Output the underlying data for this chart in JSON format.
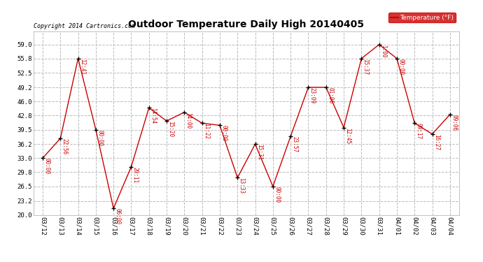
{
  "title": "Outdoor Temperature Daily High 20140405",
  "copyright": "Copyright 2014 Cartronics.com",
  "legend_label": "Temperature (°F)",
  "ylim": [
    20.0,
    62.0
  ],
  "yticks": [
    20.0,
    23.2,
    26.5,
    29.8,
    33.0,
    36.2,
    39.5,
    42.8,
    46.0,
    49.2,
    52.5,
    55.8,
    59.0
  ],
  "background_color": "#ffffff",
  "grid_color": "#bbbbbb",
  "line_color": "#cc0000",
  "marker_color": "#000000",
  "annotation_color": "#cc0000",
  "legend_bg": "#cc0000",
  "legend_fg": "#ffffff",
  "dates": [
    "03/12",
    "03/13",
    "03/14",
    "03/15",
    "03/16",
    "03/17",
    "03/18",
    "03/19",
    "03/20",
    "03/21",
    "03/22",
    "03/23",
    "03/24",
    "03/25",
    "03/26",
    "03/27",
    "03/28",
    "03/29",
    "03/30",
    "03/31",
    "04/01",
    "04/02",
    "04/03",
    "04/04"
  ],
  "values": [
    33.0,
    37.5,
    55.8,
    39.5,
    21.5,
    31.0,
    44.5,
    41.5,
    43.5,
    41.0,
    40.5,
    28.5,
    36.2,
    26.5,
    38.0,
    49.2,
    49.2,
    40.0,
    55.8,
    59.0,
    55.8,
    41.0,
    38.5,
    43.0
  ],
  "annotations": [
    "00:00",
    "22:56",
    "12:41",
    "00:00",
    "06:00",
    "20:11",
    "14:54",
    "15:20",
    "14:00",
    "11:22",
    "00:00",
    "13:33",
    "15:31",
    "00:00",
    "23:57",
    "23:09",
    "01:06",
    "12:45",
    "15:37",
    "1:00",
    "00:00",
    "09:17",
    "16:27",
    "09:06"
  ],
  "fig_width": 6.9,
  "fig_height": 3.75,
  "dpi": 100
}
